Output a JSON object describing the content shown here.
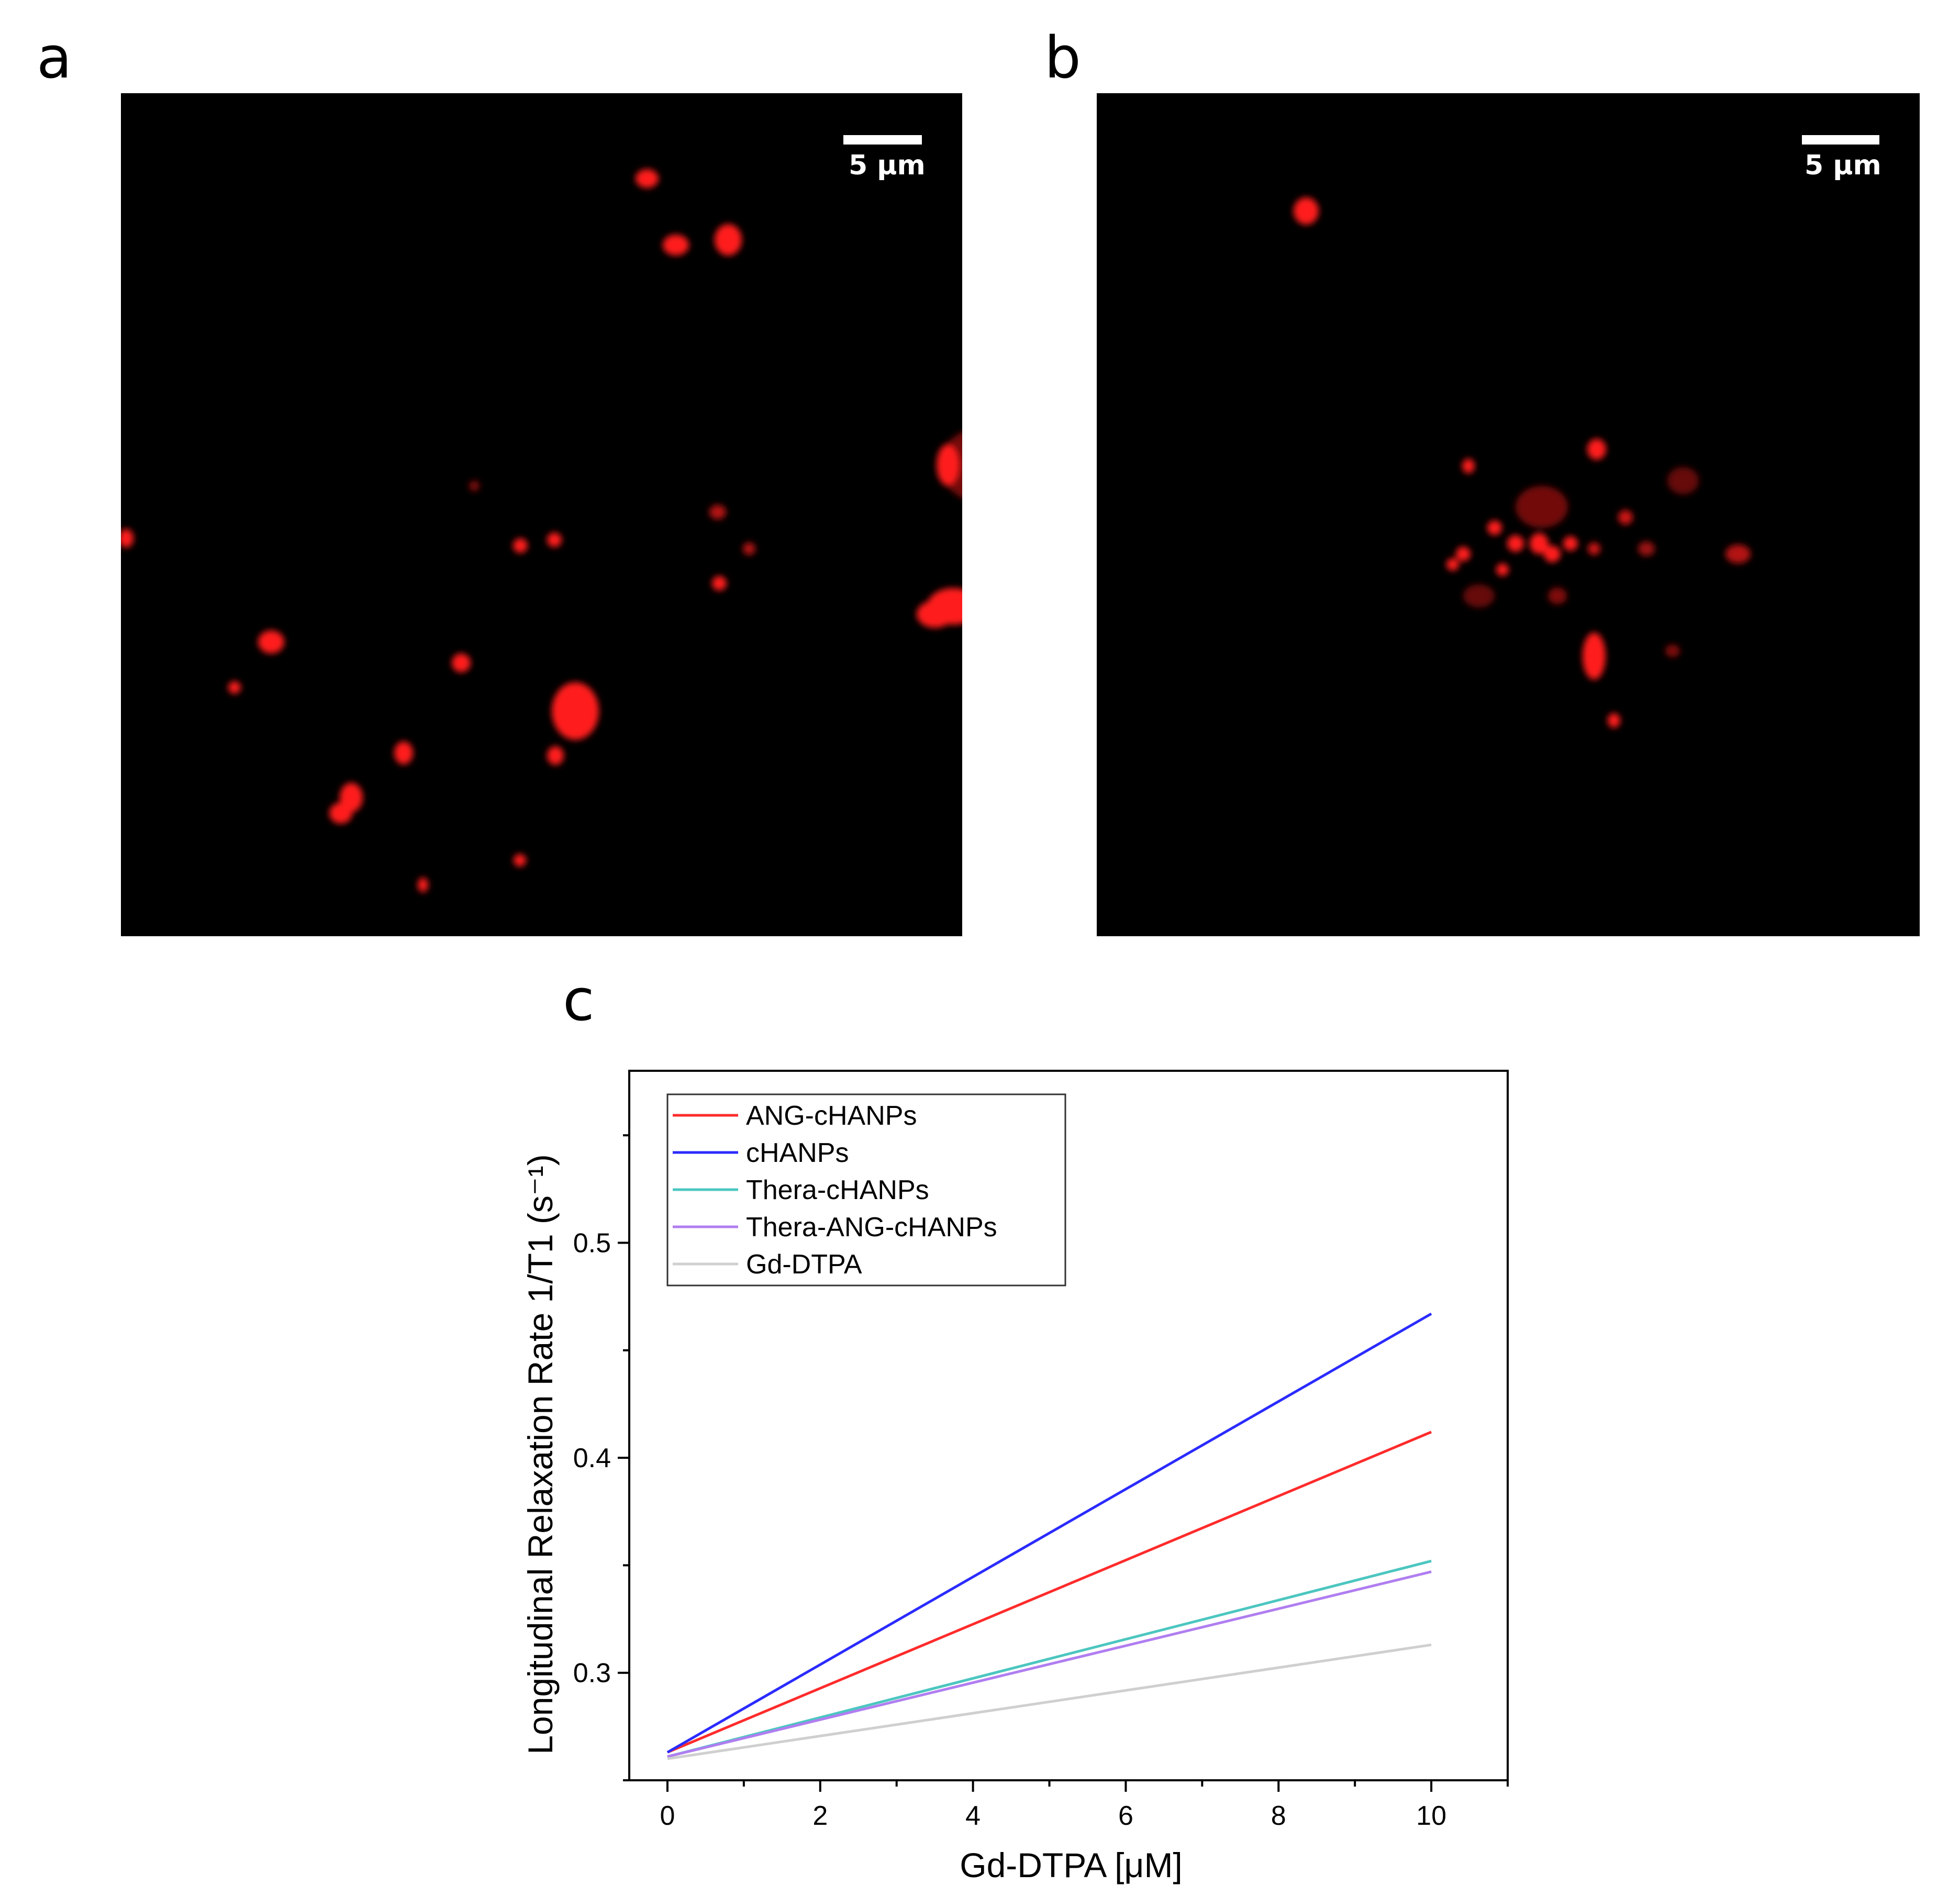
{
  "panels": {
    "a": {
      "letter": "a",
      "scale_label": "5 μm"
    },
    "b": {
      "letter": "b",
      "scale_label": "5 μm"
    },
    "c": {
      "letter": "c"
    }
  },
  "colors": {
    "fluorescence": "#ff1a1a",
    "ANG-cHANPs": "#ff2b2b",
    "cHANPs": "#2b2bff",
    "Thera-cHANPs": "#4cc6c0",
    "Thera-ANG-cHANPs": "#b07ef0",
    "Gd-DTPA": "#cfcfcf"
  },
  "chart_data": {
    "type": "line",
    "xlabel": "Gd-DTPA [μM]",
    "ylabel": "Longitudinal Relaxation Rate 1/T1 (s⁻¹)",
    "xlim": [
      -0.5,
      11
    ],
    "ylim": [
      0.25,
      0.58
    ],
    "x_ticks": [
      "0",
      "2",
      "4",
      "6",
      "8",
      "10"
    ],
    "y_ticks": [
      "0.3",
      "0.4",
      "0.5"
    ],
    "legend_position": "top-left",
    "grid": false,
    "series": [
      {
        "name": "ANG-cHANPs",
        "x": [
          0,
          10
        ],
        "y": [
          0.263,
          0.412
        ]
      },
      {
        "name": "cHANPs",
        "x": [
          0,
          10
        ],
        "y": [
          0.263,
          0.467
        ]
      },
      {
        "name": "Thera-cHANPs",
        "x": [
          0,
          10
        ],
        "y": [
          0.261,
          0.352
        ]
      },
      {
        "name": "Thera-ANG-cHANPs",
        "x": [
          0,
          10
        ],
        "y": [
          0.261,
          0.347
        ]
      },
      {
        "name": "Gd-DTPA",
        "x": [
          0,
          10
        ],
        "y": [
          0.26,
          0.313
        ]
      }
    ]
  }
}
